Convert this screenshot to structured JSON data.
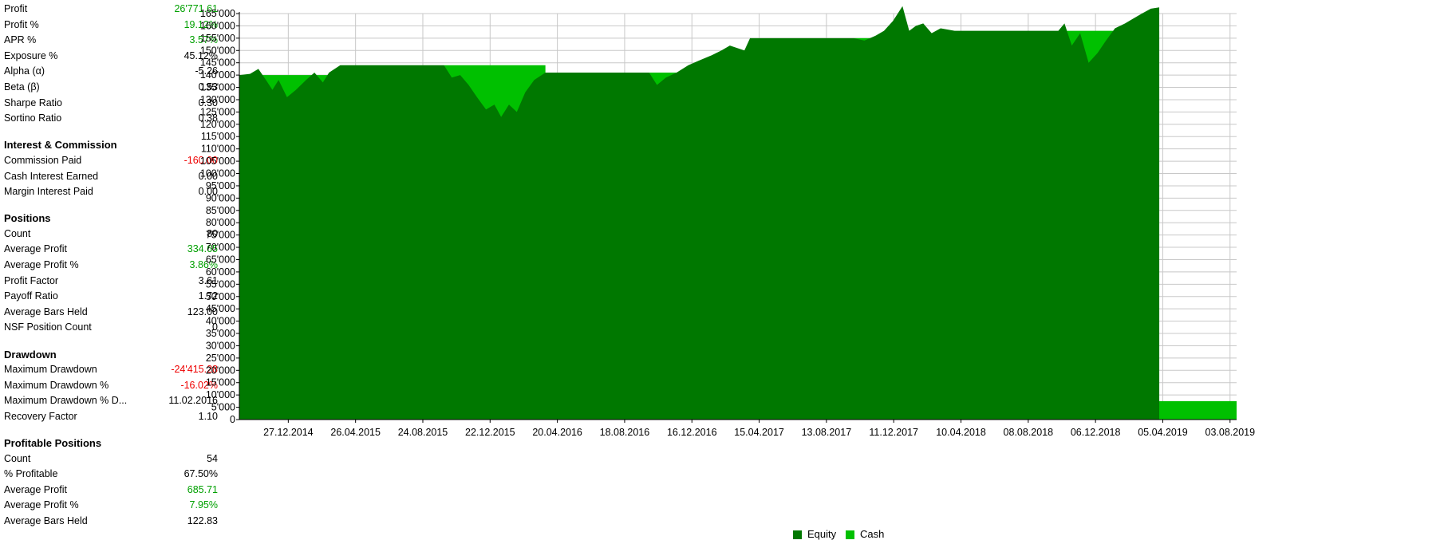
{
  "stats": {
    "top_rows": [
      {
        "label": "Profit",
        "value": "26'771.61",
        "tone": "pos"
      },
      {
        "label": "Profit %",
        "value": "19.12%",
        "tone": "pos"
      },
      {
        "label": "APR %",
        "value": "3.57%",
        "tone": "pos"
      },
      {
        "label": "Exposure %",
        "value": "45.12%",
        "tone": "neu"
      },
      {
        "label": "Alpha (α)",
        "value": "-5.26",
        "tone": "neu"
      },
      {
        "label": "Beta (β)",
        "value": "0.53",
        "tone": "neu"
      },
      {
        "label": "Sharpe Ratio",
        "value": "0.30",
        "tone": "neu"
      },
      {
        "label": "Sortino Ratio",
        "value": "0.38",
        "tone": "neu"
      }
    ],
    "sections": [
      {
        "title": "Interest & Commission",
        "rows": [
          {
            "label": "Commission Paid",
            "value": "-160.00",
            "tone": "neg"
          },
          {
            "label": "Cash Interest Earned",
            "value": "0.00",
            "tone": "neu"
          },
          {
            "label": "Margin Interest Paid",
            "value": "0.00",
            "tone": "neu"
          }
        ]
      },
      {
        "title": "Positions",
        "rows": [
          {
            "label": "Count",
            "value": "80",
            "tone": "neu"
          },
          {
            "label": "Average Profit",
            "value": "334.65",
            "tone": "pos"
          },
          {
            "label": "Average Profit %",
            "value": "3.86%",
            "tone": "pos"
          },
          {
            "label": "Profit Factor",
            "value": "3.61",
            "tone": "neu"
          },
          {
            "label": "Payoff Ratio",
            "value": "1.72",
            "tone": "neu"
          },
          {
            "label": "Average Bars Held",
            "value": "123.00",
            "tone": "neu"
          },
          {
            "label": "NSF Position Count",
            "value": "0",
            "tone": "neu"
          }
        ]
      },
      {
        "title": "Drawdown",
        "rows": [
          {
            "label": "Maximum Drawdown",
            "value": "-24'415.28",
            "tone": "neg"
          },
          {
            "label": "Maximum Drawdown %",
            "value": "-16.02%",
            "tone": "neg"
          },
          {
            "label": "Maximum Drawdown % D...",
            "value": "11.02.2016",
            "tone": "neu"
          },
          {
            "label": "Recovery Factor",
            "value": "1.10",
            "tone": "neu"
          }
        ]
      },
      {
        "title": "Profitable Positions",
        "rows": [
          {
            "label": "Count",
            "value": "54",
            "tone": "neu"
          },
          {
            "label": "% Profitable",
            "value": "67.50%",
            "tone": "neu"
          },
          {
            "label": "Average Profit",
            "value": "685.71",
            "tone": "pos"
          },
          {
            "label": "Average Profit %",
            "value": "7.95%",
            "tone": "pos"
          },
          {
            "label": "Average Bars Held",
            "value": "122.83",
            "tone": "neu"
          }
        ]
      }
    ]
  },
  "colors": {
    "equity": "#007800",
    "cash": "#00c000",
    "positive": "#00a000",
    "negative": "#ee0000",
    "grid": "#c8c8c8"
  },
  "chart_data": {
    "type": "area",
    "x_type": "date",
    "x_range": [
      "2014-11-01",
      "2019-09-15"
    ],
    "ylim": [
      0,
      165000
    ],
    "y_ticks": [
      0,
      5000,
      10000,
      15000,
      20000,
      25000,
      30000,
      35000,
      40000,
      45000,
      50000,
      55000,
      60000,
      65000,
      70000,
      75000,
      80000,
      85000,
      90000,
      95000,
      100000,
      105000,
      110000,
      115000,
      120000,
      125000,
      130000,
      135000,
      140000,
      145000,
      150000,
      155000,
      160000,
      165000
    ],
    "y_tick_labels": [
      "0",
      "5'000",
      "10'000",
      "15'000",
      "20'000",
      "25'000",
      "30'000",
      "35'000",
      "40'000",
      "45'000",
      "50'000",
      "55'000",
      "60'000",
      "65'000",
      "70'000",
      "75'000",
      "80'000",
      "85'000",
      "90'000",
      "95'000",
      "100'000",
      "105'000",
      "110'000",
      "115'000",
      "120'000",
      "125'000",
      "130'000",
      "135'000",
      "140'000",
      "145'000",
      "150'000",
      "155'000",
      "160'000",
      "165'000"
    ],
    "x_ticks": [
      "2014-12-27",
      "2015-04-26",
      "2015-08-24",
      "2015-12-22",
      "2016-04-20",
      "2016-08-18",
      "2016-12-16",
      "2017-04-15",
      "2017-08-13",
      "2017-12-11",
      "2018-04-10",
      "2018-08-08",
      "2018-12-06",
      "2019-04-05",
      "2019-08-03"
    ],
    "x_tick_labels": [
      "27.12.2014",
      "26.04.2015",
      "24.08.2015",
      "22.12.2015",
      "20.04.2016",
      "18.08.2016",
      "16.12.2016",
      "15.04.2017",
      "13.08.2017",
      "11.12.2017",
      "10.04.2018",
      "08.08.2018",
      "06.12.2018",
      "05.04.2019",
      "03.08.2019"
    ],
    "grid": true,
    "legend_position": "bottom-center",
    "series": [
      {
        "name": "Equity",
        "color": "#007800",
        "points": [
          [
            "2014-11-01",
            140000
          ],
          [
            "2014-11-20",
            140500
          ],
          [
            "2014-12-05",
            142500
          ],
          [
            "2014-12-20",
            137500
          ],
          [
            "2014-12-30",
            134000
          ],
          [
            "2015-01-10",
            138000
          ],
          [
            "2015-01-25",
            131000
          ],
          [
            "2015-02-10",
            134000
          ],
          [
            "2015-02-28",
            138000
          ],
          [
            "2015-03-15",
            141000
          ],
          [
            "2015-03-30",
            137000
          ],
          [
            "2015-04-10",
            141000
          ],
          [
            "2015-04-30",
            144000
          ],
          [
            "2015-11-01",
            144000
          ],
          [
            "2015-11-15",
            139000
          ],
          [
            "2015-11-30",
            140000
          ],
          [
            "2015-12-15",
            136000
          ],
          [
            "2015-12-30",
            131000
          ],
          [
            "2016-01-15",
            126000
          ],
          [
            "2016-01-30",
            128000
          ],
          [
            "2016-02-11",
            123000
          ],
          [
            "2016-02-25",
            128000
          ],
          [
            "2016-03-10",
            125000
          ],
          [
            "2016-03-25",
            133000
          ],
          [
            "2016-04-10",
            138000
          ],
          [
            "2016-04-30",
            141000
          ],
          [
            "2016-11-01",
            141000
          ],
          [
            "2016-11-15",
            136000
          ],
          [
            "2016-12-01",
            139000
          ],
          [
            "2016-12-20",
            141000
          ],
          [
            "2017-01-10",
            144000
          ],
          [
            "2017-01-30",
            146000
          ],
          [
            "2017-02-20",
            148000
          ],
          [
            "2017-03-10",
            150000
          ],
          [
            "2017-03-25",
            152000
          ],
          [
            "2017-04-20",
            150000
          ],
          [
            "2017-04-30",
            155000
          ],
          [
            "2017-11-01",
            155000
          ],
          [
            "2017-11-20",
            154000
          ],
          [
            "2017-12-10",
            156000
          ],
          [
            "2017-12-25",
            158000
          ],
          [
            "2018-01-10",
            162000
          ],
          [
            "2018-01-27",
            168000
          ],
          [
            "2018-02-08",
            158000
          ],
          [
            "2018-02-20",
            160000
          ],
          [
            "2018-03-05",
            161000
          ],
          [
            "2018-03-20",
            157000
          ],
          [
            "2018-04-05",
            159000
          ],
          [
            "2018-04-30",
            158000
          ],
          [
            "2018-11-01",
            158000
          ],
          [
            "2018-11-12",
            161000
          ],
          [
            "2018-11-25",
            152000
          ],
          [
            "2018-12-10",
            157000
          ],
          [
            "2018-12-25",
            145000
          ],
          [
            "2019-01-10",
            149000
          ],
          [
            "2019-01-25",
            154000
          ],
          [
            "2019-02-10",
            159000
          ],
          [
            "2019-02-28",
            161000
          ],
          [
            "2019-03-15",
            163000
          ],
          [
            "2019-03-30",
            165000
          ],
          [
            "2019-04-15",
            167000
          ],
          [
            "2019-04-30",
            167500
          ]
        ]
      },
      {
        "name": "Cash",
        "color": "#00c000",
        "points": [
          [
            "2014-11-01",
            140000
          ],
          [
            "2015-04-30",
            9500
          ],
          [
            "2015-11-01",
            144000
          ],
          [
            "2016-04-30",
            7500
          ],
          [
            "2016-11-01",
            141000
          ],
          [
            "2017-04-30",
            8000
          ],
          [
            "2017-11-01",
            155000
          ],
          [
            "2018-04-30",
            9000
          ],
          [
            "2018-11-01",
            158000
          ],
          [
            "2019-04-30",
            7500
          ],
          [
            "2019-09-15",
            167500
          ]
        ]
      }
    ]
  },
  "legend": [
    {
      "label": "Equity",
      "color": "#007800"
    },
    {
      "label": "Cash",
      "color": "#00c000"
    }
  ]
}
